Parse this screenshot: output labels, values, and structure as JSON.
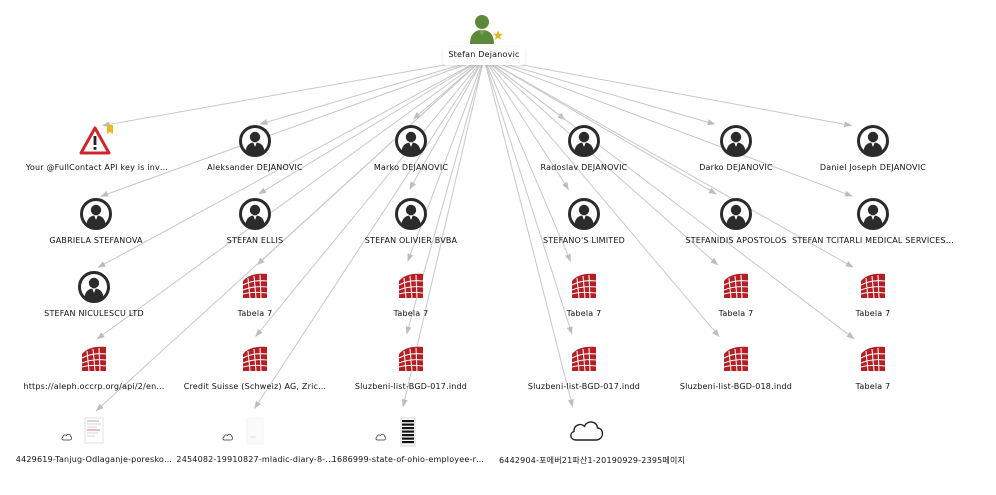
{
  "root": {
    "label": "Stefan Dejanovic"
  },
  "nodes": [
    {
      "id": "fullcontact",
      "label": "Your @FullContact API key is inv…",
      "icon": "warning-icon"
    },
    {
      "id": "aleksander",
      "label": "Aleksander DEJANOVIC",
      "icon": "person-icon"
    },
    {
      "id": "marko",
      "label": "Marko DEJANOVIC",
      "icon": "person-icon"
    },
    {
      "id": "radoslav",
      "label": "Radoslav  DEJANOVIC",
      "icon": "person-icon"
    },
    {
      "id": "darko",
      "label": "Darko DEJANOVIC",
      "icon": "person-icon"
    },
    {
      "id": "daniel",
      "label": "Daniel Joseph DEJANOVIC",
      "icon": "person-icon"
    },
    {
      "id": "gabriela",
      "label": "GABRIELA STEFANOVA",
      "icon": "person-icon"
    },
    {
      "id": "stefan-ellis",
      "label": "STEFAN  ELLIS",
      "icon": "person-icon"
    },
    {
      "id": "stefan-olivier",
      "label": "STEFAN OLIVIER BVBA",
      "icon": "person-icon"
    },
    {
      "id": "stefanos",
      "label": "STEFANO'S  LIMITED",
      "icon": "person-icon"
    },
    {
      "id": "stefanidis",
      "label": "STEFANIDIS APOSTOLOS",
      "icon": "person-icon"
    },
    {
      "id": "tcitarli",
      "label": "STEFAN TCITARLI MEDICAL SERVICES…",
      "icon": "person-icon"
    },
    {
      "id": "niculescu",
      "label": "STEFAN NICULESCU   LTD",
      "icon": "person-icon"
    },
    {
      "id": "tabela-1",
      "label": "Tabela 7",
      "icon": "dataset-icon"
    },
    {
      "id": "tabela-2",
      "label": "Tabela 7",
      "icon": "dataset-icon"
    },
    {
      "id": "tabela-3",
      "label": "Tabela 7",
      "icon": "dataset-icon"
    },
    {
      "id": "tabela-4",
      "label": "Tabela 7",
      "icon": "dataset-icon"
    },
    {
      "id": "tabela-5",
      "label": "Tabela 7",
      "icon": "dataset-icon"
    },
    {
      "id": "aleph",
      "label": "https://aleph.occrp.org/api/2/en…",
      "icon": "dataset-icon"
    },
    {
      "id": "credit-suisse",
      "label": "Credit Suisse (Schweiz) AG, Zric…",
      "icon": "dataset-icon"
    },
    {
      "id": "sluzbeni-1",
      "label": "Sluzbeni-list-BGD-017.indd",
      "icon": "dataset-icon"
    },
    {
      "id": "sluzbeni-2",
      "label": "Sluzbeni-list-BGD-017.indd",
      "icon": "dataset-icon"
    },
    {
      "id": "sluzbeni-3",
      "label": "Sluzbeni-list-BGD-018.indd",
      "icon": "dataset-icon"
    },
    {
      "id": "tabela-6",
      "label": "Tabela 7",
      "icon": "dataset-icon"
    },
    {
      "id": "tanjug",
      "label": "4429619-Tanjug-Odlaganje-poresko…",
      "icon": "document-thumbnail-icon"
    },
    {
      "id": "mladic",
      "label": "2454082-19910827-mladic-diary-8-…",
      "icon": "document-thumbnail-icon"
    },
    {
      "id": "ohio",
      "label": "1686999-state-of-ohio-employee-r…",
      "icon": "document-thumbnail-icon"
    },
    {
      "id": "korean",
      "label": "6442904-포에버21파산1-20190929-2395페이지",
      "icon": "cloud-icon"
    }
  ],
  "colors": {
    "person_ring": "#2b2b2b",
    "dataset_red": "#b21f24",
    "warning_red": "#d0262b",
    "user_green": "#5d8a3a",
    "edge_gray": "#c8c8c8"
  }
}
